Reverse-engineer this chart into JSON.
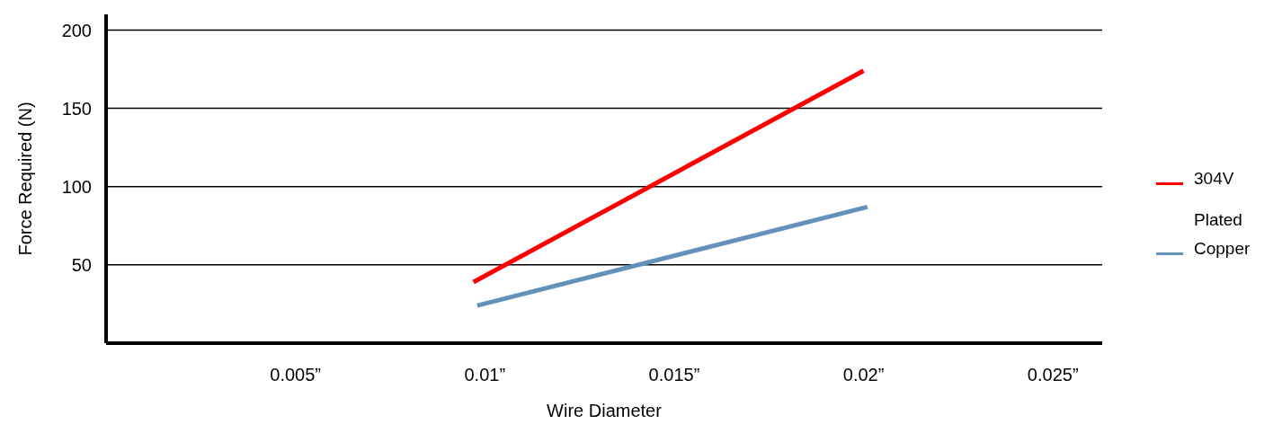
{
  "chart_data": {
    "type": "line",
    "xlabel": "Wire Diameter",
    "ylabel": "Force Required (N)",
    "xlim": [
      0,
      0.0263
    ],
    "xticks": [
      {
        "value": 0.005,
        "label": "0.005”"
      },
      {
        "value": 0.01,
        "label": "0.01”"
      },
      {
        "value": 0.015,
        "label": "0.015”"
      },
      {
        "value": 0.02,
        "label": "0.02”"
      },
      {
        "value": 0.025,
        "label": "0.025”"
      }
    ],
    "ylim": [
      0,
      210
    ],
    "yticks": [
      50,
      100,
      150,
      200
    ],
    "grid": "y",
    "legend": "right",
    "marker": "none",
    "line_style": "solid",
    "series": [
      {
        "name": "304V",
        "color": "#ff0000",
        "x": [
          0.0097,
          0.02
        ],
        "values": [
          39,
          174
        ]
      },
      {
        "name": "Plated Copper",
        "color": "#6391bb",
        "x": [
          0.0098,
          0.0201
        ],
        "values": [
          24,
          87
        ]
      }
    ]
  }
}
